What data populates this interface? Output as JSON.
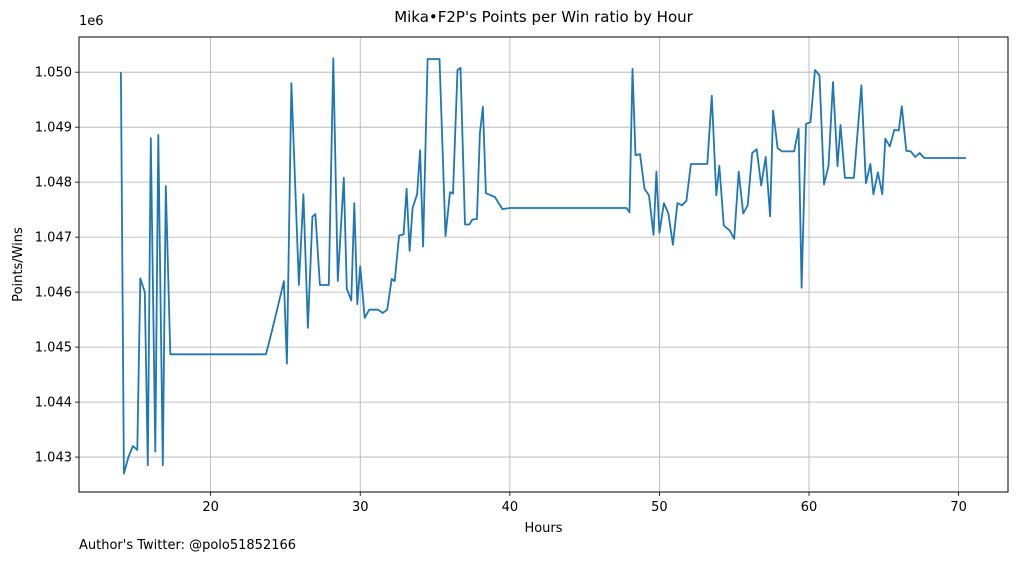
{
  "footer_text": "Author's Twitter: @polo51852166",
  "chart_data": {
    "type": "line",
    "title": "Mika•F2P's Points per Win ratio by Hour",
    "xlabel": "Hours",
    "ylabel": "Points/Wins",
    "y_offset_text": "1e6",
    "xlim": [
      11.2,
      73.3
    ],
    "ylim": [
      1042365,
      1050640
    ],
    "x_ticks": [
      20,
      30,
      40,
      50,
      60,
      70
    ],
    "y_ticks": [
      1043000,
      1044000,
      1045000,
      1046000,
      1047000,
      1048000,
      1049000,
      1050000
    ],
    "x_tick_labels": [
      "20",
      "30",
      "40",
      "50",
      "60",
      "70"
    ],
    "y_tick_labels": [
      "1.043",
      "1.044",
      "1.045",
      "1.046",
      "1.047",
      "1.048",
      "1.049",
      "1.050"
    ],
    "grid": true,
    "line_color": "#1f77b4",
    "series": [
      {
        "points": [
          [
            14.0,
            1050000
          ],
          [
            14.2,
            1042700
          ],
          [
            14.5,
            1043000
          ],
          [
            14.8,
            1043200
          ],
          [
            15.1,
            1043130
          ],
          [
            15.3,
            1046250
          ],
          [
            15.6,
            1046000
          ],
          [
            15.8,
            1042850
          ],
          [
            16.0,
            1048800
          ],
          [
            16.3,
            1043100
          ],
          [
            16.5,
            1048860
          ],
          [
            16.8,
            1042850
          ],
          [
            17.0,
            1047930
          ],
          [
            17.3,
            1044870
          ],
          [
            19.0,
            1044870
          ],
          [
            21.0,
            1044870
          ],
          [
            22.5,
            1044870
          ],
          [
            23.7,
            1044870
          ],
          [
            24.1,
            1045300
          ],
          [
            24.5,
            1045750
          ],
          [
            24.9,
            1046200
          ],
          [
            25.1,
            1044700
          ],
          [
            25.4,
            1049800
          ],
          [
            25.9,
            1046130
          ],
          [
            26.2,
            1047780
          ],
          [
            26.5,
            1045350
          ],
          [
            26.8,
            1047370
          ],
          [
            27.0,
            1047420
          ],
          [
            27.3,
            1046130
          ],
          [
            27.9,
            1046130
          ],
          [
            28.2,
            1050250
          ],
          [
            28.5,
            1046200
          ],
          [
            28.9,
            1048080
          ],
          [
            29.1,
            1046060
          ],
          [
            29.4,
            1045850
          ],
          [
            29.6,
            1047620
          ],
          [
            29.8,
            1045780
          ],
          [
            30.0,
            1046470
          ],
          [
            30.3,
            1045530
          ],
          [
            30.6,
            1045680
          ],
          [
            31.2,
            1045680
          ],
          [
            31.5,
            1045620
          ],
          [
            31.8,
            1045680
          ],
          [
            32.1,
            1046240
          ],
          [
            32.3,
            1046200
          ],
          [
            32.6,
            1047030
          ],
          [
            32.9,
            1047050
          ],
          [
            33.1,
            1047880
          ],
          [
            33.3,
            1046750
          ],
          [
            33.5,
            1047530
          ],
          [
            33.8,
            1047780
          ],
          [
            34.0,
            1048580
          ],
          [
            34.2,
            1046830
          ],
          [
            34.5,
            1050240
          ],
          [
            35.3,
            1050240
          ],
          [
            35.7,
            1047020
          ],
          [
            36.0,
            1047820
          ],
          [
            36.2,
            1047790
          ],
          [
            36.5,
            1050040
          ],
          [
            36.7,
            1050080
          ],
          [
            37.0,
            1047230
          ],
          [
            37.3,
            1047230
          ],
          [
            37.5,
            1047320
          ],
          [
            37.8,
            1047330
          ],
          [
            38.0,
            1048890
          ],
          [
            38.2,
            1049370
          ],
          [
            38.4,
            1047800
          ],
          [
            39.0,
            1047730
          ],
          [
            39.5,
            1047510
          ],
          [
            40.0,
            1047530
          ],
          [
            45.0,
            1047530
          ],
          [
            47.8,
            1047530
          ],
          [
            48.0,
            1047450
          ],
          [
            48.2,
            1050060
          ],
          [
            48.4,
            1048490
          ],
          [
            48.7,
            1048510
          ],
          [
            49.0,
            1047880
          ],
          [
            49.3,
            1047760
          ],
          [
            49.6,
            1047040
          ],
          [
            49.8,
            1048190
          ],
          [
            50.0,
            1047080
          ],
          [
            50.3,
            1047620
          ],
          [
            50.6,
            1047430
          ],
          [
            50.9,
            1046860
          ],
          [
            51.2,
            1047620
          ],
          [
            51.5,
            1047580
          ],
          [
            51.8,
            1047660
          ],
          [
            52.1,
            1048330
          ],
          [
            53.2,
            1048330
          ],
          [
            53.5,
            1049570
          ],
          [
            53.8,
            1047760
          ],
          [
            54.0,
            1048300
          ],
          [
            54.3,
            1047210
          ],
          [
            54.7,
            1047120
          ],
          [
            55.0,
            1046970
          ],
          [
            55.3,
            1048190
          ],
          [
            55.6,
            1047430
          ],
          [
            55.9,
            1047580
          ],
          [
            56.2,
            1048530
          ],
          [
            56.5,
            1048600
          ],
          [
            56.8,
            1047940
          ],
          [
            57.1,
            1048460
          ],
          [
            57.4,
            1047380
          ],
          [
            57.6,
            1049300
          ],
          [
            57.9,
            1048620
          ],
          [
            58.2,
            1048560
          ],
          [
            59.0,
            1048560
          ],
          [
            59.3,
            1048970
          ],
          [
            59.5,
            1046080
          ],
          [
            59.8,
            1049060
          ],
          [
            60.1,
            1049090
          ],
          [
            60.4,
            1050040
          ],
          [
            60.7,
            1049940
          ],
          [
            61.0,
            1047960
          ],
          [
            61.3,
            1048290
          ],
          [
            61.6,
            1049820
          ],
          [
            61.9,
            1048290
          ],
          [
            62.1,
            1049040
          ],
          [
            62.4,
            1048080
          ],
          [
            63.0,
            1048080
          ],
          [
            63.5,
            1049760
          ],
          [
            63.8,
            1047980
          ],
          [
            64.1,
            1048330
          ],
          [
            64.3,
            1047780
          ],
          [
            64.6,
            1048180
          ],
          [
            64.9,
            1047780
          ],
          [
            65.1,
            1048790
          ],
          [
            65.4,
            1048650
          ],
          [
            65.7,
            1048950
          ],
          [
            66.0,
            1048940
          ],
          [
            66.2,
            1049380
          ],
          [
            66.5,
            1048570
          ],
          [
            66.8,
            1048560
          ],
          [
            67.1,
            1048460
          ],
          [
            67.4,
            1048530
          ],
          [
            67.7,
            1048440
          ],
          [
            70.5,
            1048440
          ]
        ]
      }
    ]
  }
}
